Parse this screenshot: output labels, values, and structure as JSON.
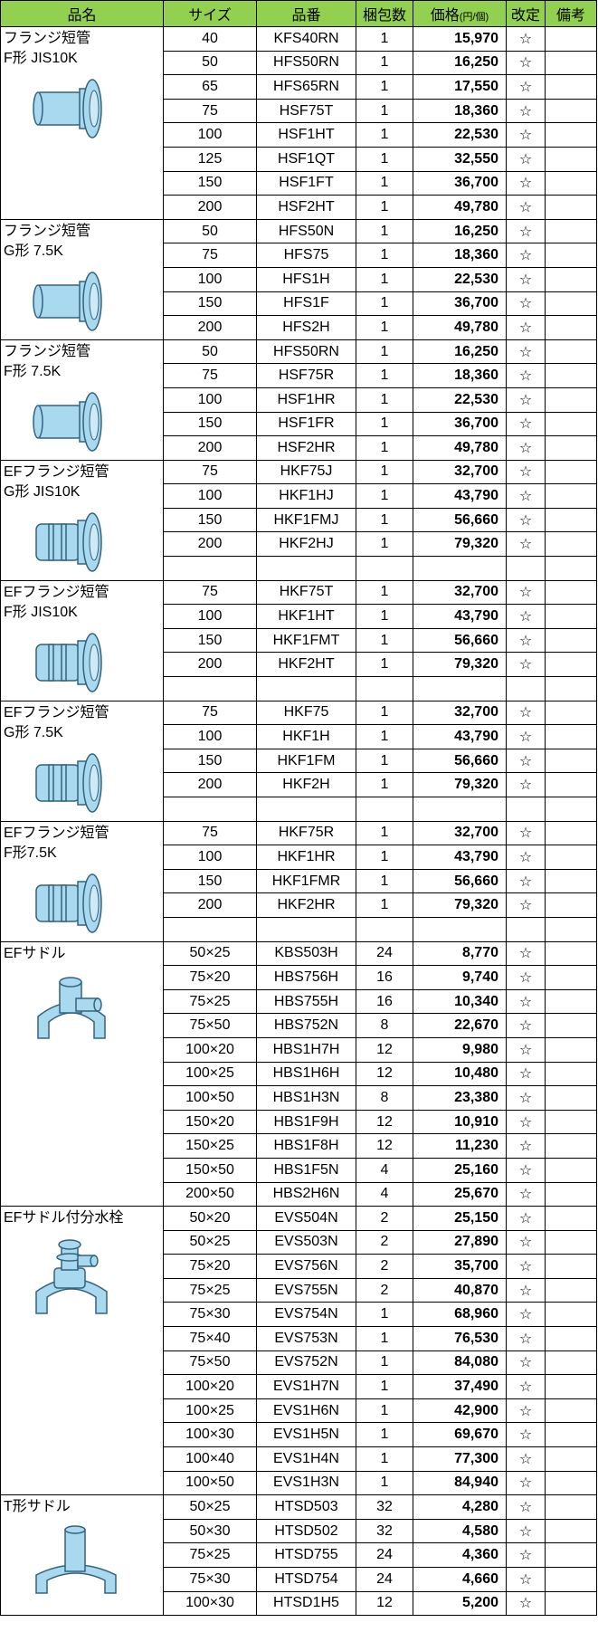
{
  "header": {
    "name": "品名",
    "size": "サイズ",
    "code": "品番",
    "pack": "梱包数",
    "price": "価格",
    "price_unit": "(円/個)",
    "revision": "改定",
    "notes": "備考"
  },
  "groups": [
    {
      "name_lines": [
        "フランジ短管",
        "F形 JIS10K"
      ],
      "rows": [
        [
          "40",
          "KFS40RN",
          1,
          "15,970",
          "☆"
        ],
        [
          "50",
          "HFS50RN",
          1,
          "16,250",
          "☆"
        ],
        [
          "65",
          "HFS65RN",
          1,
          "17,550",
          "☆"
        ],
        [
          "75",
          "HSF75T",
          1,
          "18,360",
          "☆"
        ],
        [
          "100",
          "HSF1HT",
          1,
          "22,530",
          "☆"
        ],
        [
          "125",
          "HSF1QT",
          1,
          "32,550",
          "☆"
        ],
        [
          "150",
          "HSF1FT",
          1,
          "36,700",
          "☆"
        ],
        [
          "200",
          "HSF2HT",
          1,
          "49,780",
          "☆"
        ]
      ]
    },
    {
      "name_lines": [
        "フランジ短管",
        "G形 7.5K"
      ],
      "rows": [
        [
          "50",
          "HFS50N",
          1,
          "16,250",
          "☆"
        ],
        [
          "75",
          "HFS75",
          1,
          "18,360",
          "☆"
        ],
        [
          "100",
          "HFS1H",
          1,
          "22,530",
          "☆"
        ],
        [
          "150",
          "HFS1F",
          1,
          "36,700",
          "☆"
        ],
        [
          "200",
          "HFS2H",
          1,
          "49,780",
          "☆"
        ]
      ]
    },
    {
      "name_lines": [
        "フランジ短管",
        "F形 7.5K"
      ],
      "rows": [
        [
          "50",
          "HFS50RN",
          1,
          "16,250",
          "☆"
        ],
        [
          "75",
          "HSF75R",
          1,
          "18,360",
          "☆"
        ],
        [
          "100",
          "HSF1HR",
          1,
          "22,530",
          "☆"
        ],
        [
          "150",
          "HSF1FR",
          1,
          "36,700",
          "☆"
        ],
        [
          "200",
          "HSF2HR",
          1,
          "49,780",
          "☆"
        ]
      ]
    },
    {
      "name_lines": [
        "EFフランジ短管",
        "G形 JIS10K"
      ],
      "rows": [
        [
          "75",
          "HKF75J",
          1,
          "32,700",
          "☆"
        ],
        [
          "100",
          "HKF1HJ",
          1,
          "43,790",
          "☆"
        ],
        [
          "150",
          "HKF1FMJ",
          1,
          "56,660",
          "☆"
        ],
        [
          "200",
          "HKF2HJ",
          1,
          "79,320",
          "☆"
        ],
        null
      ]
    },
    {
      "name_lines": [
        "EFフランジ短管",
        "F形 JIS10K"
      ],
      "rows": [
        [
          "75",
          "HKF75T",
          1,
          "32,700",
          "☆"
        ],
        [
          "100",
          "HKF1HT",
          1,
          "43,790",
          "☆"
        ],
        [
          "150",
          "HKF1FMT",
          1,
          "56,660",
          "☆"
        ],
        [
          "200",
          "HKF2HT",
          1,
          "79,320",
          "☆"
        ],
        null
      ]
    },
    {
      "name_lines": [
        "EFフランジ短管",
        "G形 7.5K"
      ],
      "rows": [
        [
          "75",
          "HKF75",
          1,
          "32,700",
          "☆"
        ],
        [
          "100",
          "HKF1H",
          1,
          "43,790",
          "☆"
        ],
        [
          "150",
          "HKF1FM",
          1,
          "56,660",
          "☆"
        ],
        [
          "200",
          "HKF2H",
          1,
          "79,320",
          "☆"
        ],
        null
      ]
    },
    {
      "name_lines": [
        "EFフランジ短管",
        "F形7.5K"
      ],
      "rows": [
        [
          "75",
          "HKF75R",
          1,
          "32,700",
          "☆"
        ],
        [
          "100",
          "HKF1HR",
          1,
          "43,790",
          "☆"
        ],
        [
          "150",
          "HKF1FMR",
          1,
          "56,660",
          "☆"
        ],
        [
          "200",
          "HKF2HR",
          1,
          "79,320",
          "☆"
        ],
        null
      ]
    },
    {
      "name_lines": [
        "EFサドル"
      ],
      "rows": [
        [
          "50×25",
          "KBS503H",
          24,
          "8,770",
          "☆"
        ],
        [
          "75×20",
          "HBS756H",
          16,
          "9,740",
          "☆"
        ],
        [
          "75×25",
          "HBS755H",
          16,
          "10,340",
          "☆"
        ],
        [
          "75×50",
          "HBS752N",
          8,
          "22,670",
          "☆"
        ],
        [
          "100×20",
          "HBS1H7H",
          12,
          "9,980",
          "☆"
        ],
        [
          "100×25",
          "HBS1H6H",
          12,
          "10,480",
          "☆"
        ],
        [
          "100×50",
          "HBS1H3N",
          8,
          "23,380",
          "☆"
        ],
        [
          "150×20",
          "HBS1F9H",
          12,
          "10,910",
          "☆"
        ],
        [
          "150×25",
          "HBS1F8H",
          12,
          "11,230",
          "☆"
        ],
        [
          "150×50",
          "HBS1F5N",
          4,
          "25,160",
          "☆"
        ],
        [
          "200×50",
          "HBS2H6N",
          4,
          "25,670",
          "☆"
        ]
      ]
    },
    {
      "name_lines": [
        "EFサドル付分水栓"
      ],
      "rows": [
        [
          "50×20",
          "EVS504N",
          2,
          "25,150",
          "☆"
        ],
        [
          "50×25",
          "EVS503N",
          2,
          "27,890",
          "☆"
        ],
        [
          "75×20",
          "EVS756N",
          2,
          "35,700",
          "☆"
        ],
        [
          "75×25",
          "EVS755N",
          2,
          "40,870",
          "☆"
        ],
        [
          "75×30",
          "EVS754N",
          1,
          "68,960",
          "☆"
        ],
        [
          "75×40",
          "EVS753N",
          1,
          "76,530",
          "☆"
        ],
        [
          "75×50",
          "EVS752N",
          1,
          "84,080",
          "☆"
        ],
        [
          "100×20",
          "EVS1H7N",
          1,
          "37,490",
          "☆"
        ],
        [
          "100×25",
          "EVS1H6N",
          1,
          "42,900",
          "☆"
        ],
        [
          "100×30",
          "EVS1H5N",
          1,
          "69,670",
          "☆"
        ],
        [
          "100×40",
          "EVS1H4N",
          1,
          "77,300",
          "☆"
        ],
        [
          "100×50",
          "EVS1H3N",
          1,
          "84,940",
          "☆"
        ]
      ]
    },
    {
      "name_lines": [
        "T形サドル"
      ],
      "rows": [
        [
          "50×25",
          "HTSD503",
          32,
          "4,280",
          "☆"
        ],
        [
          "50×30",
          "HTSD502",
          32,
          "4,580",
          "☆"
        ],
        [
          "75×25",
          "HTSD755",
          24,
          "4,360",
          "☆"
        ],
        [
          "75×30",
          "HTSD754",
          24,
          "4,660",
          "☆"
        ],
        [
          "100×30",
          "HTSD1H5",
          12,
          "5,200",
          "☆"
        ]
      ]
    }
  ]
}
